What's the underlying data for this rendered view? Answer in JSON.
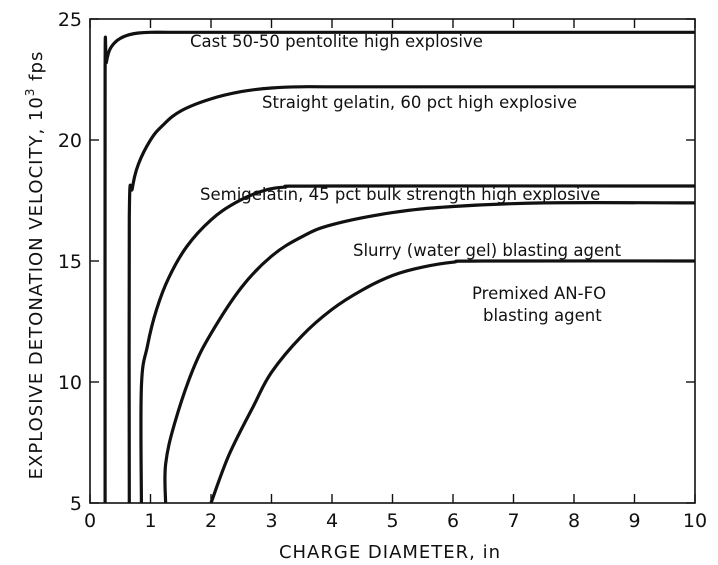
{
  "chart_data": {
    "type": "line",
    "title": "",
    "xlabel": "CHARGE DIAMETER, in",
    "ylabel_main": "EXPLOSIVE DETONATION VELOCITY, 10",
    "ylabel_sup": "3",
    "ylabel_unit": "fps",
    "xlim": [
      0,
      10
    ],
    "ylim": [
      5,
      25
    ],
    "x_ticks": [
      "0",
      "1",
      "2",
      "3",
      "4",
      "5",
      "6",
      "7",
      "8",
      "9",
      "10"
    ],
    "y_ticks": [
      "5",
      "10",
      "15",
      "20",
      "25"
    ],
    "grid": false,
    "series": [
      {
        "labels": [
          "Cast 50-50 pentolite high explosive"
        ],
        "x": [
          0.25,
          0.25,
          0.27,
          0.32,
          0.4,
          0.5,
          0.65,
          0.8,
          1.0,
          1.3,
          2.0,
          5.0,
          10.0
        ],
        "y": [
          5.0,
          22.7,
          23.2,
          23.7,
          24.0,
          24.2,
          24.35,
          24.42,
          24.45,
          24.45,
          24.45,
          24.45,
          24.45
        ]
      },
      {
        "labels": [
          "Straight gelatin, 60 pct high explosive"
        ],
        "x": [
          0.65,
          0.65,
          0.7,
          0.8,
          1.0,
          1.2,
          1.5,
          2.0,
          2.5,
          3.0,
          3.5,
          4.5,
          10.0
        ],
        "y": [
          5.0,
          16.8,
          18.0,
          19.0,
          20.0,
          20.6,
          21.2,
          21.7,
          22.0,
          22.15,
          22.2,
          22.2,
          22.2
        ]
      },
      {
        "labels": [
          "Semigelatin, 45 pct bulk strength high explosive"
        ],
        "x": [
          0.85,
          0.85,
          0.95,
          1.1,
          1.3,
          1.6,
          2.0,
          2.4,
          2.8,
          3.2,
          4.0,
          10.0
        ],
        "y": [
          5.0,
          9.8,
          11.5,
          13.0,
          14.3,
          15.6,
          16.7,
          17.4,
          17.85,
          18.05,
          18.1,
          18.1
        ]
      },
      {
        "labels": [
          "Slurry (water gel) blasting agent"
        ],
        "x": [
          1.25,
          1.25,
          1.4,
          1.7,
          2.0,
          2.5,
          3.0,
          3.5,
          4.0,
          5.0,
          6.0,
          7.5,
          10.0
        ],
        "y": [
          5.0,
          6.6,
          8.3,
          10.5,
          12.0,
          13.9,
          15.2,
          16.0,
          16.5,
          17.0,
          17.25,
          17.4,
          17.4
        ]
      },
      {
        "labels": [
          "Premixed AN-FO",
          "blasting agent"
        ],
        "x": [
          2.0,
          2.3,
          2.7,
          3.0,
          3.5,
          4.0,
          4.5,
          5.0,
          5.5,
          6.0,
          6.5,
          10.0
        ],
        "y": [
          5.0,
          7.0,
          9.0,
          10.4,
          11.9,
          13.0,
          13.8,
          14.4,
          14.75,
          14.95,
          15.0,
          15.0
        ]
      }
    ]
  }
}
